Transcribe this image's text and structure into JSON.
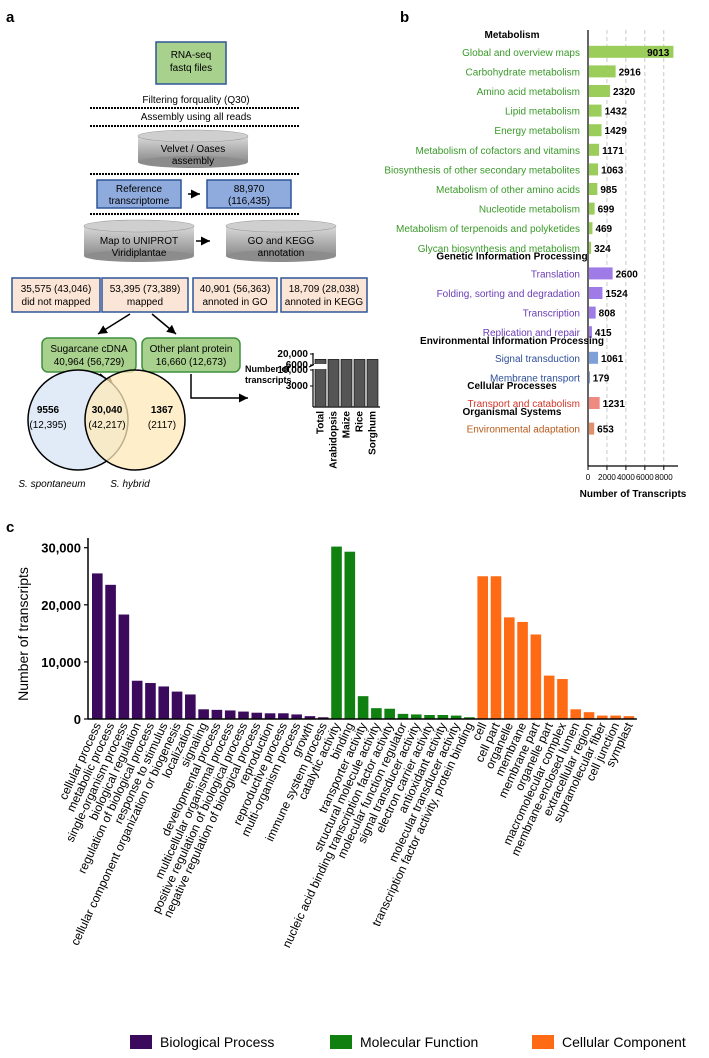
{
  "panel_labels": {
    "a": "a",
    "b": "b",
    "c": "c"
  },
  "flowchart": {
    "rnaseq": [
      "RNA-seq",
      "fastq files"
    ],
    "filtering": "Filtering forquality  (Q30)",
    "assembly_all": "Assembly using all reads",
    "velvet": [
      "Velvet / Oases",
      "assembly"
    ],
    "reference": [
      "Reference",
      "transcriptome"
    ],
    "count_88970": [
      "88,970",
      "(116,435)"
    ],
    "map_uniprot": [
      "Map to UNIPROT",
      "Viridiplantae"
    ],
    "go_kegg": [
      "GO and KEGG",
      "annotation"
    ],
    "not_mapped": [
      "35,575 (43,046)",
      "did not mapped"
    ],
    "mapped": [
      "53,395 (73,389)",
      "mapped"
    ],
    "go_annot": [
      "40,901 (56,363)",
      "annoted in GO"
    ],
    "kegg_annot": [
      "18,709 (28,038)",
      "annoted in KEGG"
    ],
    "sugarcane": [
      "Sugarcane cDNA",
      "40,964 (56,729)"
    ],
    "other_plant": [
      "Other plant protein",
      "16,660 (12,673)"
    ],
    "venn_left": [
      "9556",
      "(12,395)"
    ],
    "venn_mid": [
      "30,040",
      "(42,217)"
    ],
    "venn_right": [
      "1367",
      "(2117)"
    ],
    "venn_label_left": "S. spontaneum",
    "venn_label_right": "S. hybrid"
  },
  "colors": {
    "flow_green_fill": "#a9d18e",
    "flow_blue_fill": "#8faadc",
    "flow_peach_fill": "#fbe5d6",
    "flow_border": "#2f5597",
    "kegg_metabolism": "#9acd5a",
    "kegg_metabolism_text": "#3a9a2a",
    "kegg_genetic": "#9f7be8",
    "kegg_genetic_text": "#6a3db5",
    "kegg_environmental": "#7f9fd9",
    "kegg_environmental_text": "#2e4f9a",
    "kegg_cellular": "#ef8a80",
    "kegg_cellular_text": "#d2352a",
    "kegg_organismal": "#e0906a",
    "kegg_organismal_text": "#b85a1a",
    "go_bp": "#3c0a5c",
    "go_mf": "#108010",
    "go_cc": "#ff6a14"
  },
  "chart_data": [
    {
      "id": "a-inset",
      "type": "bar",
      "ylabel": "Number of transcripts",
      "categories": [
        "Total",
        "Arabidopsis",
        "Maize",
        "Rice",
        "Sorghum"
      ],
      "values": [
        16660,
        6800,
        6800,
        6800,
        6800
      ],
      "yticks": [
        "3000",
        "6000",
        "10,000",
        "20,000"
      ],
      "axis_break": true
    },
    {
      "id": "b",
      "type": "bar",
      "orientation": "horizontal",
      "xlabel": "Number of Transcripts",
      "xlim": [
        0,
        9500
      ],
      "xticks": [
        "0",
        "2000",
        "4000",
        "6000",
        "8000"
      ],
      "groups": [
        {
          "name": "Metabolism",
          "color_key": "metabolism",
          "items": [
            {
              "label": "Global and overview maps",
              "value": 9013
            },
            {
              "label": "Carbohydrate metabolism",
              "value": 2916
            },
            {
              "label": "Amino acid metabolism",
              "value": 2320
            },
            {
              "label": "Lipid metabolism",
              "value": 1432
            },
            {
              "label": "Energy metabolism",
              "value": 1429
            },
            {
              "label": "Metabolism of cofactors and vitamins",
              "value": 1171
            },
            {
              "label": "Biosynthesis of other secondary metabolites",
              "value": 1063
            },
            {
              "label": "Metabolism of other amino acids",
              "value": 985
            },
            {
              "label": "Nucleotide metabolism",
              "value": 699
            },
            {
              "label": "Metabolism of terpenoids and polyketides",
              "value": 469
            },
            {
              "label": "Glycan biosynthesis and metabolism",
              "value": 324
            }
          ]
        },
        {
          "name": "Genetic Information Processing",
          "color_key": "genetic",
          "items": [
            {
              "label": "Translation",
              "value": 2600
            },
            {
              "label": "Folding, sorting and degradation",
              "value": 1524
            },
            {
              "label": "Transcription",
              "value": 808
            },
            {
              "label": "Replication and repair",
              "value": 415
            }
          ]
        },
        {
          "name": "Environmental Information Processing",
          "color_key": "environmental",
          "items": [
            {
              "label": "Signal transduction",
              "value": 1061
            },
            {
              "label": "Membrane transport",
              "value": 179
            }
          ]
        },
        {
          "name": "Cellular Processes",
          "color_key": "cellular",
          "items": [
            {
              "label": "Transport and catabolism",
              "value": 1231
            }
          ]
        },
        {
          "name": "Organismal Systems",
          "color_key": "organismal",
          "items": [
            {
              "label": "Environmental adaptation",
              "value": 653
            }
          ]
        }
      ]
    },
    {
      "id": "c",
      "type": "bar",
      "ylabel": "Number of transcripts",
      "ylim": [
        0,
        31000
      ],
      "yticks": [
        "0",
        "10,000",
        "20,000",
        "30,000"
      ],
      "legend": [
        "Biological Process",
        "Molecular Function",
        "Cellular Component"
      ],
      "legend_placement": "bottom",
      "series": [
        {
          "name": "Biological Process",
          "color_key": "go_bp",
          "categories": [
            "cellular process",
            "metabolic process",
            "single-organism process",
            "biological regulation",
            "regulation of biological process",
            "response to stimulus",
            "cellular component organization or biogenesis",
            "localization",
            "signaling",
            "developmental process",
            "multicellular organismal process",
            "positive regulation of biological process",
            "negative regulation of biological process",
            "reproduction",
            "reproductive process",
            "multi-organism process",
            "growth",
            "immune system process"
          ],
          "values": [
            25500,
            23500,
            18300,
            6700,
            6300,
            5700,
            4800,
            4300,
            1700,
            1600,
            1500,
            1300,
            1100,
            1000,
            1000,
            800,
            500,
            300
          ]
        },
        {
          "name": "Molecular Function",
          "color_key": "go_mf",
          "categories": [
            "catalytic activity",
            "binding",
            "transporter activity",
            "structural molecule activity",
            "nucleic acid binding transcription factor activity",
            "molecular function regulator",
            "signal transducer activity",
            "electron carrier activity",
            "antioxidant activity",
            "molecular transducer activity",
            "transcription factor activity, protein binding"
          ],
          "values": [
            30200,
            29300,
            4000,
            1900,
            1800,
            900,
            800,
            700,
            700,
            600,
            300
          ]
        },
        {
          "name": "Cellular Component",
          "color_key": "go_cc",
          "categories": [
            "cell",
            "cell part",
            "organelle",
            "membrane",
            "membrane part",
            "organelle part",
            "macromolecular complex",
            "membrane-enclosed lumen",
            "extracellular region",
            "supramolecular fiber",
            "cell junction",
            "symplast"
          ],
          "values": [
            25000,
            25000,
            17800,
            17000,
            14800,
            7600,
            7000,
            1700,
            1200,
            600,
            600,
            500
          ]
        }
      ]
    }
  ]
}
